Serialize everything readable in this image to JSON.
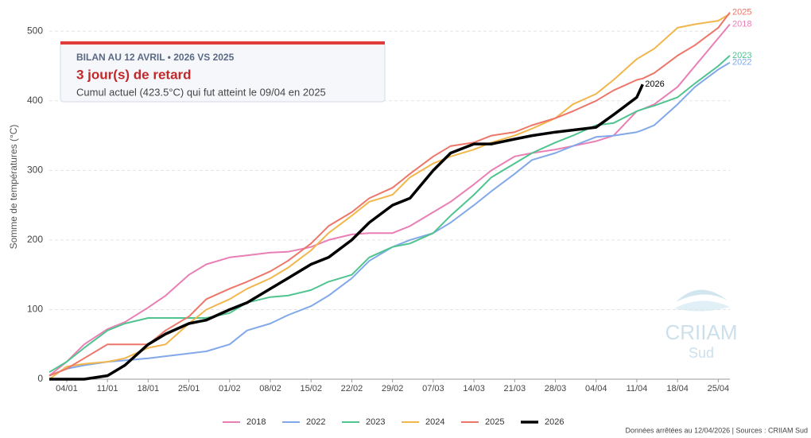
{
  "chart_data": {
    "type": "line",
    "ylabel": "Somme de températures (°C)",
    "x": [
      1,
      4,
      7,
      11,
      14,
      18,
      21,
      25,
      28,
      32,
      35,
      39,
      42,
      46,
      49,
      53,
      56,
      60,
      63,
      67,
      70,
      74,
      77,
      81,
      84,
      88,
      91,
      95,
      98,
      102,
      103,
      105,
      109,
      112,
      116,
      118
    ],
    "xlim": [
      1,
      118
    ],
    "xticks": [
      {
        "value": 4,
        "label": "04/01"
      },
      {
        "value": 11,
        "label": "11/01"
      },
      {
        "value": 18,
        "label": "18/01"
      },
      {
        "value": 25,
        "label": "25/01"
      },
      {
        "value": 32,
        "label": "01/02"
      },
      {
        "value": 39,
        "label": "08/02"
      },
      {
        "value": 46,
        "label": "15/02"
      },
      {
        "value": 53,
        "label": "22/02"
      },
      {
        "value": 60,
        "label": "29/02"
      },
      {
        "value": 67,
        "label": "07/03"
      },
      {
        "value": 74,
        "label": "14/03"
      },
      {
        "value": 81,
        "label": "21/03"
      },
      {
        "value": 88,
        "label": "28/03"
      },
      {
        "value": 95,
        "label": "04/04"
      },
      {
        "value": 102,
        "label": "11/04"
      },
      {
        "value": 109,
        "label": "18/04"
      },
      {
        "value": 116,
        "label": "25/04"
      }
    ],
    "ylim": [
      0,
      530
    ],
    "yticks": [
      0,
      100,
      200,
      300,
      400,
      500
    ],
    "grid": true,
    "series": [
      {
        "name": "2018",
        "color": "#e97fb4",
        "values": [
          5,
          25,
          50,
          72,
          82,
          103,
          120,
          150,
          165,
          175,
          178,
          182,
          183,
          190,
          200,
          208,
          210,
          210,
          220,
          240,
          255,
          280,
          300,
          320,
          325,
          330,
          335,
          342,
          350,
          385,
          388,
          395,
          420,
          450,
          490,
          510
        ]
      },
      {
        "name": "2022",
        "color": "#82a8ea",
        "values": [
          5,
          15,
          20,
          25,
          27,
          30,
          33,
          37,
          40,
          50,
          70,
          80,
          92,
          105,
          120,
          145,
          170,
          190,
          200,
          210,
          225,
          250,
          270,
          295,
          315,
          325,
          335,
          348,
          350,
          355,
          358,
          365,
          395,
          420,
          445,
          455
        ]
      },
      {
        "name": "2023",
        "color": "#4fc48f",
        "values": [
          10,
          25,
          45,
          70,
          80,
          88,
          88,
          88,
          88,
          95,
          110,
          118,
          120,
          128,
          140,
          150,
          175,
          190,
          195,
          210,
          235,
          265,
          290,
          310,
          325,
          340,
          350,
          365,
          368,
          385,
          388,
          393,
          405,
          425,
          450,
          465
        ]
      },
      {
        "name": "2024",
        "color": "#f1b64c",
        "values": [
          0,
          18,
          22,
          25,
          30,
          45,
          50,
          80,
          100,
          115,
          130,
          145,
          160,
          185,
          210,
          235,
          255,
          265,
          290,
          310,
          320,
          330,
          340,
          350,
          360,
          375,
          395,
          410,
          430,
          460,
          465,
          475,
          505,
          510,
          515,
          525
        ]
      },
      {
        "name": "2025",
        "color": "#ed766a",
        "values": [
          5,
          15,
          30,
          50,
          50,
          50,
          70,
          90,
          115,
          130,
          140,
          155,
          170,
          195,
          220,
          240,
          260,
          275,
          295,
          320,
          335,
          340,
          350,
          355,
          365,
          375,
          385,
          400,
          415,
          430,
          432,
          440,
          465,
          480,
          505,
          527
        ]
      },
      {
        "name": "2026",
        "color": "#000000",
        "values": [
          0,
          0,
          0,
          5,
          20,
          50,
          65,
          80,
          85,
          100,
          110,
          130,
          145,
          165,
          175,
          200,
          225,
          250,
          260,
          300,
          325,
          338,
          338,
          345,
          350,
          355,
          358,
          362,
          380,
          405,
          423.5,
          null,
          null,
          null,
          null,
          null
        ]
      }
    ],
    "annotation": {
      "heading": "BILAN AU 12 AVRIL • 2026 VS 2025",
      "headline": "3 jour(s) de retard",
      "detail": "Cumul actuel (423.5°C) qui fut atteint le 09/04 en 2025"
    },
    "logo": {
      "name": "CRIIAM",
      "sub": "Sud"
    },
    "footer": "Données arrêtées au 12/04/2026 | Sources : CRIIAM Sud"
  }
}
